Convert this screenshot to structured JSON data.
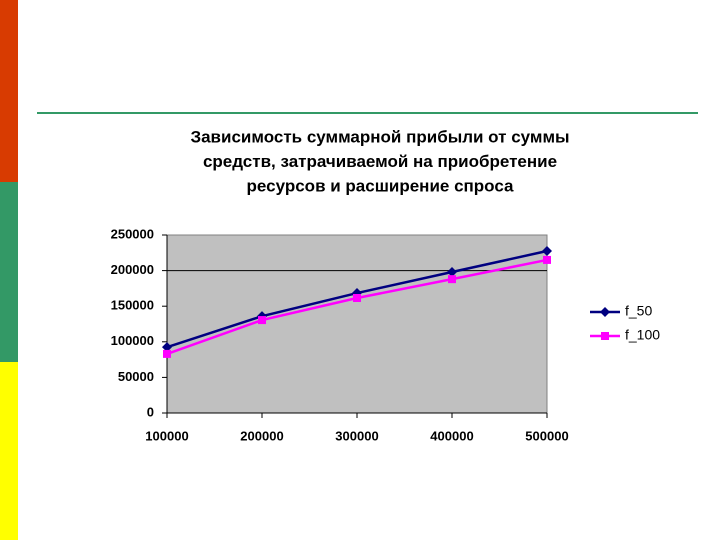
{
  "chart_data": {
    "type": "line",
    "title": [
      "Зависимость суммарной прибыли от суммы",
      "средств, затрачиваемой на приобретение",
      "ресурсов и расширение спроса"
    ],
    "x": [
      100000,
      200000,
      300000,
      400000,
      500000
    ],
    "series": [
      {
        "name": "f_50",
        "color": "#000080",
        "marker": "diamond",
        "values": [
          92500,
          136000,
          168500,
          198000,
          227500
        ]
      },
      {
        "name": "f_100",
        "color": "#ff00ff",
        "marker": "square",
        "values": [
          83000,
          130500,
          161500,
          188000,
          215000
        ]
      }
    ],
    "xlim": [
      100000,
      500000
    ],
    "xticks": [
      100000,
      200000,
      300000,
      400000,
      500000
    ],
    "ylim": [
      0,
      250000
    ],
    "yticks": [
      0,
      50000,
      100000,
      150000,
      200000,
      250000
    ],
    "grid_lines": [
      200000
    ],
    "plot_background": "#c0c0c0",
    "legend": "right"
  }
}
